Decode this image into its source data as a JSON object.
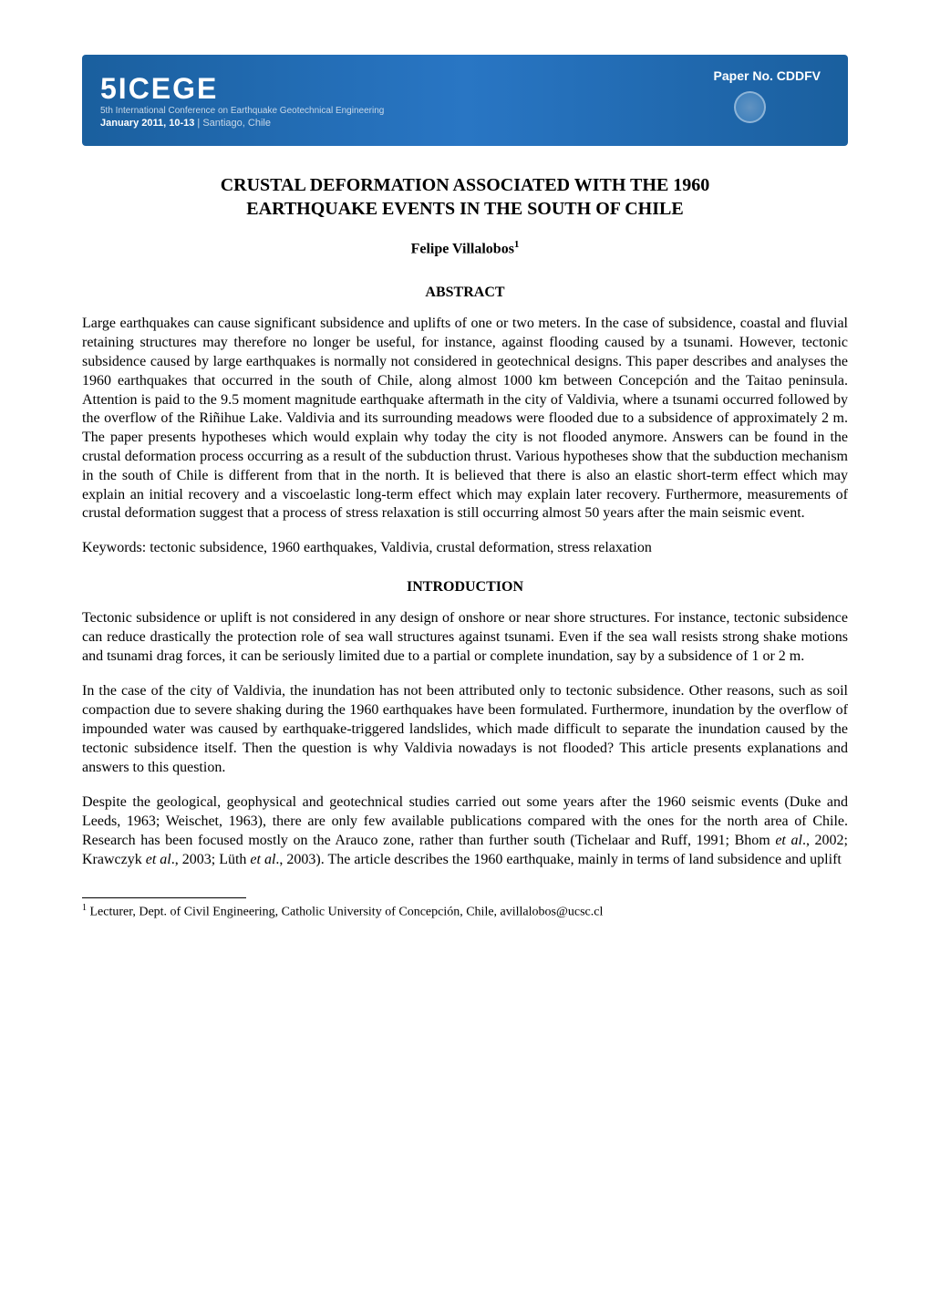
{
  "banner": {
    "logo_text": "5ICEGE",
    "subtitle": "5th International Conference on Earthquake Geotechnical Engineering",
    "date": "January 2011, 10-13",
    "location": "Santiago, Chile",
    "paper_no_label": "Paper No. CDDFV",
    "colors": {
      "background_gradient_start": "#1a5f9e",
      "background_gradient_mid": "#2976c4",
      "text_white": "#ffffff",
      "text_light": "#c8d8e8"
    }
  },
  "title": {
    "line1": "CRUSTAL DEFORMATION ASSOCIATED WITH THE 1960",
    "line2": "EARTHQUAKE EVENTS IN THE SOUTH OF CHILE",
    "fontsize": 20
  },
  "author": {
    "name": "Felipe Villalobos",
    "superscript": "1",
    "fontsize": 16
  },
  "sections": {
    "abstract": {
      "heading": "ABSTRACT",
      "body": "Large earthquakes can cause significant subsidence and uplifts of one or two meters. In the case of subsidence, coastal and fluvial retaining structures may therefore no longer be useful, for instance, against flooding caused by a tsunami. However, tectonic subsidence caused by large earthquakes is normally not considered in geotechnical designs. This paper describes and analyses the 1960 earthquakes that occurred in the south of Chile, along almost 1000 km between Concepción and the Taitao peninsula. Attention is paid to the 9.5 moment magnitude earthquake aftermath in the city of Valdivia, where a tsunami occurred followed by the overflow of the Riñihue Lake. Valdivia and its surrounding meadows were flooded due to a subsidence of approximately 2 m. The paper presents hypotheses which would explain why today the city is not flooded anymore. Answers can be found in the crustal deformation process occurring as a result of the subduction thrust. Various hypotheses show that the subduction mechanism in the south of Chile is different from that in the north. It is believed that there is also an elastic short-term effect which may explain an initial recovery and a viscoelastic long-term effect which may explain later recovery. Furthermore, measurements of crustal deformation suggest that a process of stress relaxation is still occurring almost 50 years after the main seismic event."
    },
    "keywords": {
      "text": "Keywords: tectonic subsidence, 1960 earthquakes, Valdivia, crustal deformation, stress relaxation"
    },
    "introduction": {
      "heading": "INTRODUCTION",
      "paragraphs": [
        "Tectonic subsidence or uplift is not considered in any design of onshore or near shore structures. For instance, tectonic subsidence can reduce drastically the protection role of sea wall structures against tsunami. Even if the sea wall resists strong shake motions and tsunami drag forces, it can be seriously limited due to a partial or complete inundation, say by a subsidence of 1 or 2 m.",
        "In the case of the city of Valdivia, the inundation has not been attributed only to tectonic subsidence. Other reasons, such as soil compaction due to severe shaking during the 1960 earthquakes have been formulated. Furthermore, inundation by the overflow of impounded water was caused by earthquake-triggered landslides, which made difficult to separate the inundation caused by the tectonic subsidence itself. Then the question is why Valdivia nowadays is not flooded? This article presents explanations and answers to this question."
      ],
      "paragraph3_parts": {
        "p1": "Despite the geological, geophysical and geotechnical studies carried out some years after the 1960 seismic events (Duke and Leeds, 1963; Weischet, 1963), there are only few available publications compared with the ones for the north area of Chile. Research has been focused mostly on the Arauco zone, rather than further south (Tichelaar and Ruff, 1991; Bhom ",
        "i1": "et al",
        "p2": "., 2002; Krawczyk ",
        "i2": "et al",
        "p3": "., 2003; Lüth ",
        "i3": "et al",
        "p4": "., 2003). The article describes the 1960 earthquake, mainly in terms of land subsidence and uplift"
      }
    }
  },
  "footnote": {
    "superscript": "1",
    "text": " Lecturer, Dept. of Civil Engineering, Catholic University of Concepción, Chile, avillalobos@ucsc.cl"
  },
  "typography": {
    "body_fontsize": 16,
    "heading_fontsize": 16,
    "footnote_fontsize": 14,
    "font_family": "Times New Roman",
    "text_color": "#000000",
    "background_color": "#ffffff"
  }
}
